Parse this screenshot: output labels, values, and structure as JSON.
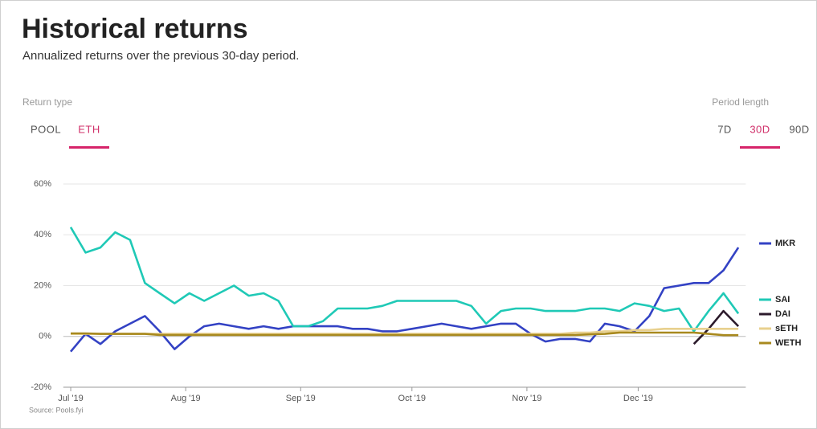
{
  "header": {
    "title": "Historical returns",
    "subtitle": "Annualized returns over the previous 30-day period."
  },
  "controls": {
    "return_type": {
      "label": "Return type",
      "options": [
        "POOL",
        "ETH"
      ],
      "active": 1
    },
    "period_length": {
      "label": "Period length",
      "options": [
        "7D",
        "30D",
        "90D"
      ],
      "active": 1
    }
  },
  "chart_data": {
    "type": "line",
    "source": "Source: Pools.fyi",
    "x": [
      0,
      4,
      8,
      12,
      16,
      20,
      24,
      28,
      32,
      36,
      40,
      44,
      48,
      52,
      56,
      60,
      64,
      68,
      72,
      76,
      80,
      84,
      88,
      92,
      96,
      100,
      104,
      108,
      112,
      116,
      120,
      124,
      128,
      132,
      136,
      140,
      144,
      148,
      152,
      156,
      160,
      164,
      168,
      172,
      176,
      180
    ],
    "xlim": [
      -2,
      182
    ],
    "xticks": [
      {
        "value": 0,
        "label": "Jul '19"
      },
      {
        "value": 31,
        "label": "Aug '19"
      },
      {
        "value": 62,
        "label": "Sep '19"
      },
      {
        "value": 92,
        "label": "Oct '19"
      },
      {
        "value": 123,
        "label": "Nov '19"
      },
      {
        "value": 153,
        "label": "Dec '19"
      }
    ],
    "ylim": [
      -20,
      60
    ],
    "yticks": [
      {
        "value": -20,
        "label": "-20%"
      },
      {
        "value": 0,
        "label": "0%"
      },
      {
        "value": 20,
        "label": "20%"
      },
      {
        "value": 40,
        "label": "40%"
      },
      {
        "value": 60,
        "label": "60%"
      }
    ],
    "grid": true,
    "legend": "right",
    "series": [
      {
        "name": "MKR",
        "color": "#3342c4",
        "values": [
          -6,
          1,
          -3,
          2,
          5,
          8,
          2,
          -5,
          0,
          4,
          5,
          4,
          3,
          4,
          3,
          4,
          4,
          4,
          4,
          3,
          3,
          2,
          2,
          3,
          4,
          5,
          4,
          3,
          4,
          5,
          5,
          1,
          -2,
          -1,
          -1,
          -2,
          5,
          4,
          2,
          8,
          19,
          20,
          21,
          21,
          26,
          35
        ]
      },
      {
        "name": "SAI",
        "color": "#1fc9b6",
        "values": [
          43,
          33,
          35,
          41,
          38,
          21,
          17,
          13,
          17,
          14,
          17,
          20,
          16,
          17,
          14,
          4,
          4,
          6,
          11,
          11,
          11,
          12,
          14,
          14,
          14,
          14,
          14,
          12,
          5,
          10,
          11,
          11,
          10,
          10,
          10,
          11,
          11,
          10,
          13,
          12,
          10,
          11,
          2,
          10,
          17,
          9
        ]
      },
      {
        "name": "DAI",
        "color": "#2b1a2b",
        "values": [
          null,
          null,
          null,
          null,
          null,
          null,
          null,
          null,
          null,
          null,
          null,
          null,
          null,
          null,
          null,
          null,
          null,
          null,
          null,
          null,
          null,
          null,
          null,
          null,
          null,
          null,
          null,
          null,
          null,
          null,
          null,
          null,
          null,
          null,
          null,
          null,
          null,
          null,
          null,
          null,
          null,
          null,
          -3,
          3,
          10,
          4
        ]
      },
      {
        "name": "sETH",
        "color": "#e8d08e",
        "values": [
          1,
          1,
          1,
          1,
          1,
          1,
          1,
          1,
          1,
          1,
          1,
          1,
          1,
          1,
          1,
          1,
          1,
          1,
          1,
          1,
          1,
          1,
          1,
          1,
          1,
          1,
          1,
          1,
          1,
          1,
          1,
          1,
          1,
          1,
          1.5,
          1.5,
          2,
          2,
          2.5,
          2.5,
          3,
          3,
          3,
          3,
          3,
          3
        ]
      },
      {
        "name": "WETH",
        "color": "#a8891e",
        "values": [
          1.2,
          1.2,
          1,
          1,
          1,
          1,
          0.6,
          0.6,
          0.6,
          0.6,
          0.6,
          0.6,
          0.6,
          0.6,
          0.6,
          0.6,
          0.6,
          0.6,
          0.6,
          0.6,
          0.6,
          0.6,
          0.6,
          0.6,
          0.6,
          0.6,
          0.6,
          0.6,
          0.6,
          0.6,
          0.6,
          0.6,
          0.6,
          0.6,
          0.6,
          0.8,
          1,
          1.5,
          1.5,
          1.5,
          1.5,
          1.5,
          1.5,
          1,
          0.5,
          0.5
        ]
      }
    ]
  }
}
